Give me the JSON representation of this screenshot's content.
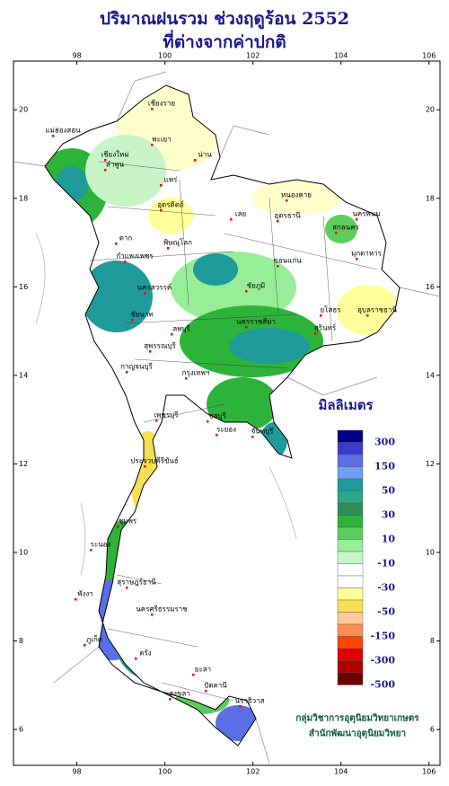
{
  "header": {
    "title": "ปริมาณฝนรวม ช่วงฤดูร้อน 2552",
    "subtitle": "ที่ต่างจากค่าปกติ"
  },
  "map": {
    "lon_range": [
      96.56,
      106.25
    ],
    "lat_range": [
      5.19,
      21.1
    ],
    "lon_ticks": [
      98,
      100,
      102,
      104,
      106
    ],
    "lat_ticks": [
      20,
      18,
      16,
      14,
      12,
      10,
      8,
      6
    ],
    "places": [
      "เชียงราย",
      "พะเยา",
      "แม่ฮ่องสอน",
      "เชียงใหม่",
      "ลำพูน",
      "น่าน",
      "แพร่",
      "อุตรดิตถ์",
      "เลย",
      "หนองคาย",
      "อุดรธานี",
      "นครพนม",
      "สกลนคร",
      "มุกดาหาร",
      "ตาก",
      "พิษณุโลก",
      "กำแพงเพชร",
      "ขอนแก่น",
      "นครสวรรค์",
      "ชัยภูมิ",
      "ชัยนาท",
      "ลพบุรี",
      "ยโสธร",
      "อุบลราชธานี",
      "นครราชสีมา",
      "สุรินทร์",
      "สุพรรณบุรี",
      "กาญจนบุรี",
      "กรุงเทพฯ",
      "เพชรบุรี",
      "ชลบุรี",
      "ระยอง",
      "จันทบุรี",
      "ประจวบคีรีขันธ์",
      "ชุมพร",
      "ระนอง",
      "สุราษฎร์ธานี",
      "พังงา",
      "นครศรีธรรมราช",
      "ภูเก็ต",
      "ตรัง",
      "ยะลา",
      "สงขลา",
      "ปัตตานี",
      "นราธิวาส"
    ]
  },
  "legend": {
    "title": "มิลลิเมตร",
    "colors": [
      "#00008b",
      "#3a3ad0",
      "#5a6ee6",
      "#6f9ff0",
      "#1f9a9a",
      "#2aa88a",
      "#2e8b57",
      "#2db33a",
      "#5ccd5c",
      "#98ee98",
      "#c8f5c8",
      "#ffffff",
      "#ffffff",
      "#ffff99",
      "#f5e050",
      "#ffc896",
      "#ff8c50",
      "#ff4500",
      "#e00000",
      "#b00000",
      "#700000"
    ],
    "labels": [
      300,
      150,
      50,
      30,
      10,
      -10,
      -30,
      -50,
      -150,
      -300,
      -500
    ]
  },
  "credits": [
    "กลุ่มวิชาการอุตุนิยมวิทยาเกษตร",
    "สำนักพัฒนาอุตุนิยมวิทยา"
  ]
}
